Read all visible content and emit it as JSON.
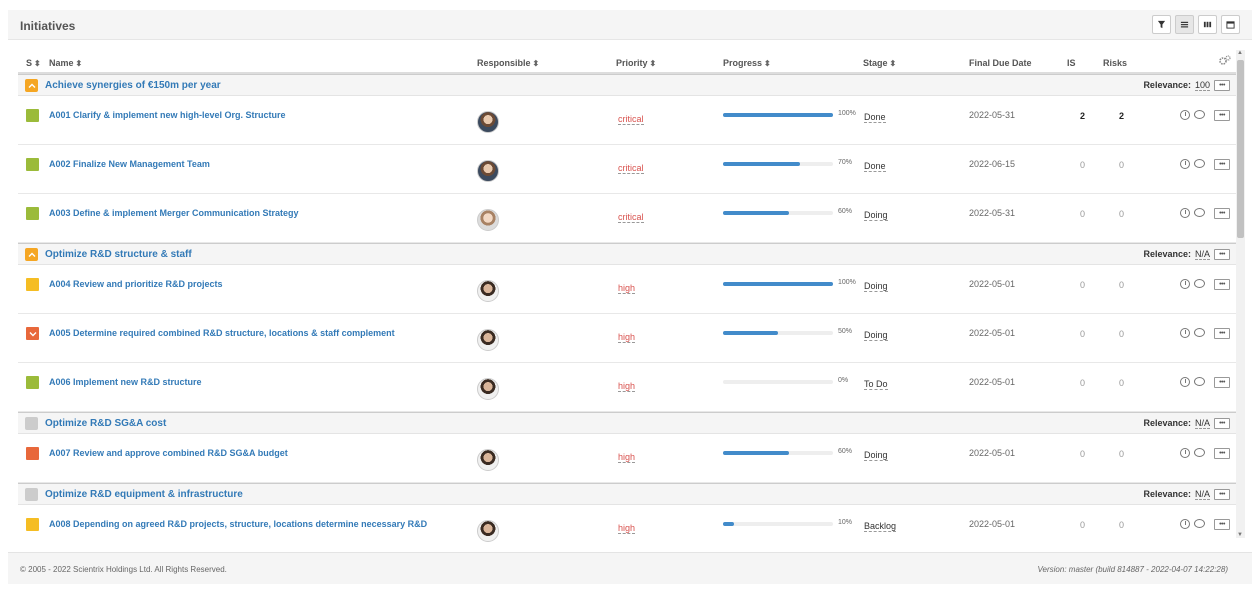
{
  "header": {
    "title": "Initiatives",
    "views": [
      "filter-icon",
      "list-icon",
      "kanban-icon",
      "calendar-icon"
    ]
  },
  "columns": {
    "s": "S",
    "name": "Name",
    "responsible": "Responsible",
    "priority": "Priority",
    "progress": "Progress",
    "stage": "Stage",
    "due": "Final Due Date",
    "is": "IS",
    "risks": "Risks"
  },
  "groups": [
    {
      "title": "Achieve synergies of €150m per year",
      "relevance_label": "Relevance:",
      "relevance": "100"
    },
    {
      "title": "Optimize R&D structure & staff",
      "relevance_label": "Relevance:",
      "relevance": "N/A"
    },
    {
      "title": "Optimize R&D SG&A cost",
      "relevance_label": "Relevance:",
      "relevance": "N/A"
    },
    {
      "title": "Optimize R&D equipment & infrastructure",
      "relevance_label": "Relevance:",
      "relevance": "N/A"
    }
  ],
  "rows": [
    {
      "name": "A001 Clarify & implement new high-level Org. Structure",
      "status_color": "#9bbb3a",
      "priority": "critical",
      "progress": 1.0,
      "progress_label": "100%",
      "stage": "Done",
      "due": "2022-05-31",
      "is": "2",
      "risks": "2"
    },
    {
      "name": "A002 Finalize New Management Team",
      "status_color": "#9bbb3a",
      "priority": "critical",
      "progress": 0.7,
      "progress_label": "70%",
      "stage": "Done",
      "due": "2022-06-15",
      "is": "0",
      "risks": "0"
    },
    {
      "name": "A003 Define & implement Merger Communication Strategy",
      "status_color": "#9bbb3a",
      "priority": "critical",
      "progress": 0.6,
      "progress_label": "60%",
      "stage": "Doing",
      "due": "2022-05-31",
      "is": "0",
      "risks": "0"
    },
    {
      "name": "A004 Review and prioritize R&D projects",
      "status_color": "#f5bd23",
      "priority": "high",
      "progress": 1.0,
      "progress_label": "100%",
      "stage": "Doing",
      "due": "2022-05-01",
      "is": "0",
      "risks": "0"
    },
    {
      "name": "A005 Determine required combined R&D structure, locations & staff complement",
      "status_color": "#e8683b",
      "priority": "high",
      "progress": 0.5,
      "progress_label": "50%",
      "stage": "Doing",
      "due": "2022-05-01",
      "is": "0",
      "risks": "0"
    },
    {
      "name": "A006 Implement new R&D structure",
      "status_color": "#9bbb3a",
      "priority": "high",
      "progress": 0.0,
      "progress_label": "0%",
      "stage": "To Do",
      "due": "2022-05-01",
      "is": "0",
      "risks": "0"
    },
    {
      "name": "A007 Review and approve combined R&D SG&A budget",
      "status_color": "#e8683b",
      "priority": "high",
      "progress": 0.6,
      "progress_label": "60%",
      "stage": "Doing",
      "due": "2022-05-01",
      "is": "0",
      "risks": "0"
    },
    {
      "name": "A008 Depending on agreed R&D projects, structure, locations determine necessary R&D",
      "status_color": "#f5bd23",
      "priority": "high",
      "progress": 0.1,
      "progress_label": "10%",
      "stage": "Backlog",
      "due": "2022-05-01",
      "is": "0",
      "risks": "0"
    }
  ],
  "footer": {
    "copyright": "© 2005 - 2022 Scientrix Holdings Ltd. All Rights Reserved.",
    "version": "Version: master (build 814887 - 2022-04-07 14:22:28)"
  }
}
